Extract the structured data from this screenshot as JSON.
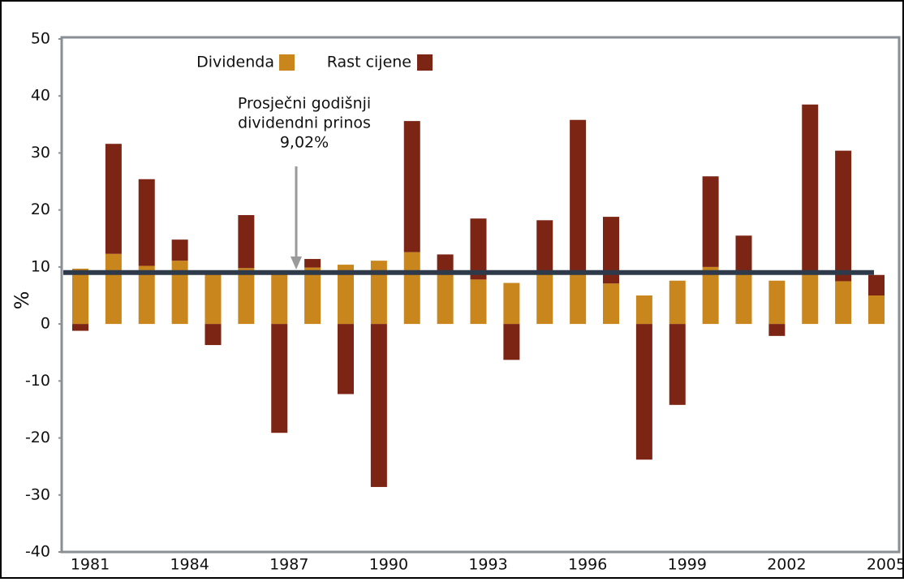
{
  "chart_data": {
    "type": "stacked_bar",
    "categories": [
      "1981",
      null,
      null,
      "1984",
      null,
      null,
      "1987",
      null,
      null,
      "1990",
      null,
      null,
      "1993",
      null,
      null,
      "1996",
      null,
      null,
      "1999",
      null,
      null,
      "2002",
      null,
      null,
      "2005"
    ],
    "series": [
      {
        "name": "Dividenda",
        "color": "#c8861c",
        "values": [
          9.7,
          12.3,
          10.2,
          11.1,
          9.4,
          9.8,
          9.0,
          9.9,
          10.4,
          11.1,
          12.6,
          9.4,
          7.8,
          7.2,
          9.0,
          9.0,
          7.1,
          5.0,
          7.6,
          10.0,
          9.0,
          7.6,
          9.0,
          7.5,
          5.0
        ]
      },
      {
        "name": "Rast cijene",
        "color": "#7d2514",
        "values": [
          -1.2,
          19.3,
          15.2,
          3.7,
          -3.7,
          9.3,
          -19.1,
          1.5,
          -12.3,
          -28.6,
          23.0,
          2.8,
          10.7,
          -6.3,
          9.2,
          26.8,
          11.7,
          -23.8,
          -14.2,
          15.9,
          6.5,
          -2.1,
          29.5,
          22.9,
          3.6
        ]
      }
    ],
    "ylabel": "%",
    "ylim": [
      -40,
      50
    ],
    "yticks": [
      -40,
      -30,
      -20,
      -10,
      0,
      10,
      20,
      30,
      40,
      50
    ],
    "annotation": [
      "Prosječni godišnji",
      "dividendni prinos"
    ],
    "reference_line": {
      "value": 9.02,
      "label": "9,02%",
      "color": "#2e3a4a"
    },
    "legend": "top"
  }
}
